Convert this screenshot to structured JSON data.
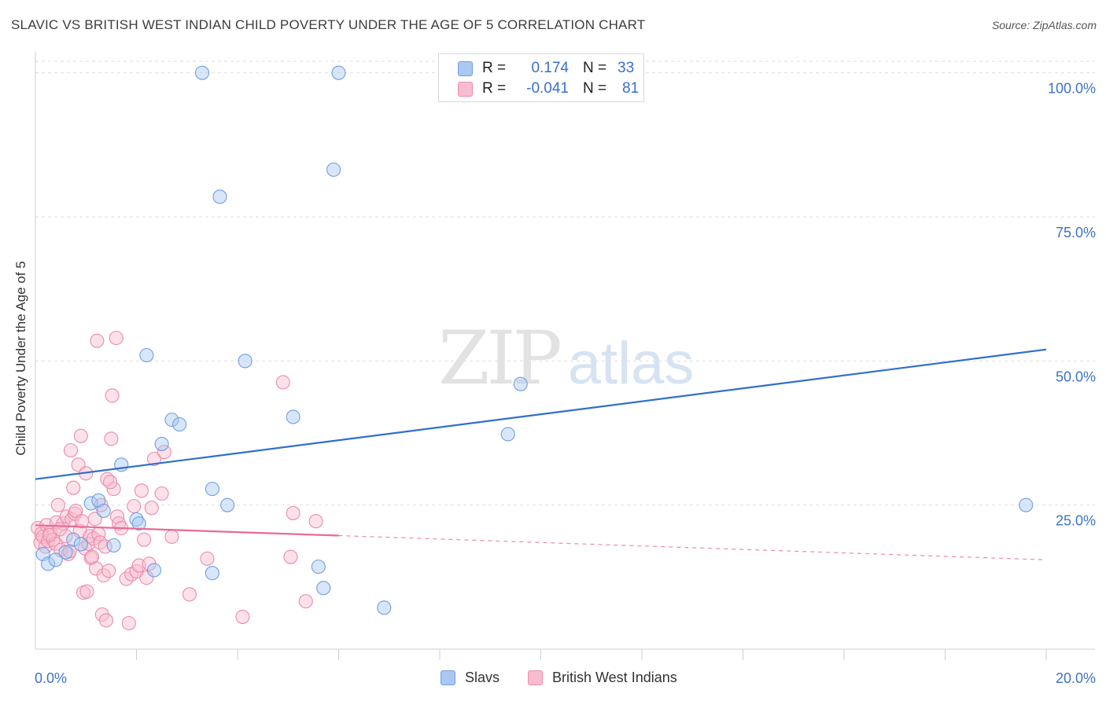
{
  "title": "SLAVIC VS BRITISH WEST INDIAN CHILD POVERTY UNDER THE AGE OF 5 CORRELATION CHART",
  "source": "Source: ZipAtlas.com",
  "watermark": {
    "zip": "ZIP",
    "atlas": "atlas"
  },
  "legend": {
    "rows": [
      {
        "r_label": "R =",
        "r_value": "0.174",
        "n_label": "N =",
        "n_value": "33",
        "color": "#a9c8f2",
        "border": "#6f9fe0"
      },
      {
        "r_label": "R =",
        "r_value": "-0.041",
        "n_label": "N =",
        "n_value": "81",
        "color": "#f8bccf",
        "border": "#ec8bab"
      }
    ]
  },
  "bottom_legend": [
    {
      "label": "Slavs",
      "color": "#a9c8f2",
      "border": "#6f9fe0"
    },
    {
      "label": "British West Indians",
      "color": "#f8bccf",
      "border": "#ec8bab"
    }
  ],
  "chart_data": {
    "type": "scatter",
    "title": "SLAVIC VS BRITISH WEST INDIAN CHILD POVERTY UNDER THE AGE OF 5 CORRELATION CHART",
    "xlabel": "",
    "ylabel": "Child Poverty Under the Age of 5",
    "xlim": [
      0,
      20
    ],
    "ylim": [
      0,
      102
    ],
    "x_tick_labels": [
      "0.0%",
      "20.0%"
    ],
    "y_ticks": [
      25,
      50,
      75,
      100
    ],
    "y_tick_labels": [
      "25.0%",
      "50.0%",
      "75.0%",
      "100.0%"
    ],
    "grid": true,
    "legend_position": "top-center",
    "series": [
      {
        "name": "Slavs",
        "color": "#a9c8f2",
        "stroke": "#6f9fe0",
        "trend": {
          "x0": 0,
          "y0": 29.5,
          "x1": 20,
          "y1": 52.0,
          "color": "#2f6fce",
          "dashed_from": null
        },
        "points": [
          [
            0.15,
            16.5
          ],
          [
            0.25,
            14.8
          ],
          [
            0.4,
            15.5
          ],
          [
            0.6,
            16.8
          ],
          [
            0.75,
            19.0
          ],
          [
            0.9,
            18.2
          ],
          [
            1.1,
            25.3
          ],
          [
            1.25,
            25.8
          ],
          [
            1.35,
            24.0
          ],
          [
            1.55,
            18.0
          ],
          [
            1.7,
            32.0
          ],
          [
            2.0,
            22.5
          ],
          [
            2.05,
            21.8
          ],
          [
            2.2,
            51.0
          ],
          [
            2.35,
            13.7
          ],
          [
            2.5,
            35.6
          ],
          [
            2.7,
            39.8
          ],
          [
            2.85,
            39.0
          ],
          [
            3.3,
            100.0
          ],
          [
            3.5,
            13.2
          ],
          [
            3.5,
            27.8
          ],
          [
            3.65,
            78.5
          ],
          [
            3.8,
            25.0
          ],
          [
            4.15,
            50.0
          ],
          [
            5.1,
            40.3
          ],
          [
            5.6,
            14.3
          ],
          [
            5.7,
            10.6
          ],
          [
            5.9,
            83.2
          ],
          [
            6.0,
            100.0
          ],
          [
            6.9,
            7.2
          ],
          [
            9.35,
            37.3
          ],
          [
            9.6,
            46.0
          ],
          [
            19.6,
            25.0
          ]
        ]
      },
      {
        "name": "British West Indians",
        "color": "#f8bccf",
        "stroke": "#ec8bab",
        "trend": {
          "x0": 0,
          "y0": 21.5,
          "x1": 20,
          "y1": 15.5,
          "color": "#e96a95",
          "dashed_from": 6.0
        },
        "points": [
          [
            0.05,
            21.0
          ],
          [
            0.1,
            18.5
          ],
          [
            0.12,
            20.0
          ],
          [
            0.15,
            19.5
          ],
          [
            0.2,
            17.8
          ],
          [
            0.22,
            21.5
          ],
          [
            0.25,
            18.8
          ],
          [
            0.3,
            20.2
          ],
          [
            0.35,
            19.0
          ],
          [
            0.4,
            18.3
          ],
          [
            0.42,
            22.0
          ],
          [
            0.45,
            25.0
          ],
          [
            0.5,
            17.2
          ],
          [
            0.55,
            21.8
          ],
          [
            0.6,
            19.6
          ],
          [
            0.62,
            23.0
          ],
          [
            0.65,
            16.5
          ],
          [
            0.7,
            34.5
          ],
          [
            0.72,
            22.5
          ],
          [
            0.75,
            28.0
          ],
          [
            0.78,
            23.5
          ],
          [
            0.8,
            24.0
          ],
          [
            0.85,
            32.0
          ],
          [
            0.88,
            20.5
          ],
          [
            0.9,
            37.0
          ],
          [
            0.92,
            22.2
          ],
          [
            0.95,
            9.8
          ],
          [
            0.98,
            17.5
          ],
          [
            1.0,
            30.5
          ],
          [
            1.02,
            10.0
          ],
          [
            1.05,
            18.3
          ],
          [
            1.08,
            19.6
          ],
          [
            1.1,
            15.8
          ],
          [
            1.12,
            16.0
          ],
          [
            1.15,
            19.2
          ],
          [
            1.2,
            14.0
          ],
          [
            1.22,
            53.5
          ],
          [
            1.25,
            20.0
          ],
          [
            1.28,
            18.5
          ],
          [
            1.3,
            25.0
          ],
          [
            1.32,
            6.0
          ],
          [
            1.35,
            12.8
          ],
          [
            1.38,
            17.8
          ],
          [
            1.4,
            5.0
          ],
          [
            1.42,
            29.5
          ],
          [
            1.45,
            13.6
          ],
          [
            1.5,
            36.5
          ],
          [
            1.52,
            44.0
          ],
          [
            1.55,
            27.8
          ],
          [
            1.6,
            54.0
          ],
          [
            1.62,
            23.0
          ],
          [
            1.65,
            21.8
          ],
          [
            1.7,
            21.0
          ],
          [
            1.8,
            12.2
          ],
          [
            1.85,
            4.5
          ],
          [
            1.9,
            13.0
          ],
          [
            1.95,
            24.8
          ],
          [
            2.0,
            13.5
          ],
          [
            2.05,
            14.5
          ],
          [
            2.1,
            27.5
          ],
          [
            2.15,
            19.0
          ],
          [
            2.2,
            12.4
          ],
          [
            2.25,
            14.8
          ],
          [
            2.3,
            24.5
          ],
          [
            2.35,
            33.0
          ],
          [
            2.5,
            27.0
          ],
          [
            2.55,
            34.2
          ],
          [
            2.7,
            19.5
          ],
          [
            3.05,
            9.5
          ],
          [
            3.4,
            15.7
          ],
          [
            4.1,
            5.6
          ],
          [
            4.9,
            46.3
          ],
          [
            5.05,
            16.0
          ],
          [
            5.1,
            23.6
          ],
          [
            5.35,
            8.3
          ],
          [
            5.55,
            22.2
          ],
          [
            0.28,
            19.8
          ],
          [
            0.48,
            20.8
          ],
          [
            0.68,
            17.0
          ],
          [
            1.18,
            22.6
          ],
          [
            1.48,
            29.0
          ]
        ]
      }
    ]
  }
}
